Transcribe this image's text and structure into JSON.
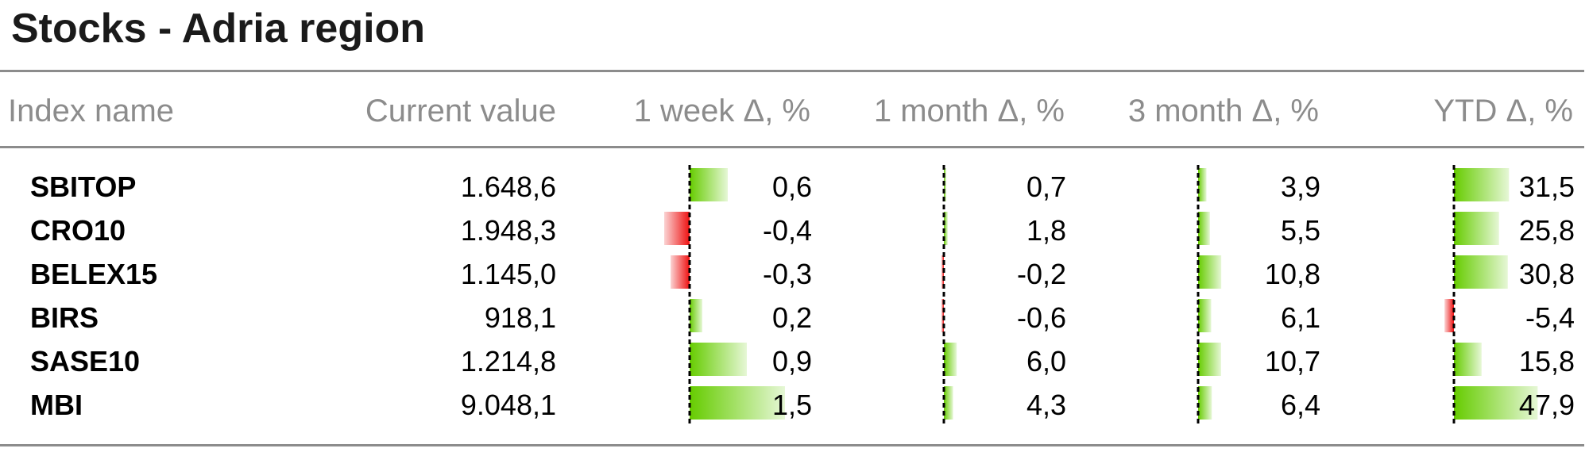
{
  "title": "Stocks - Adria region",
  "columns": [
    "Index name",
    "Current value",
    "1 week Δ, %",
    "1 month Δ, %",
    "3 month Δ, %",
    "YTD Δ, %"
  ],
  "colors": {
    "positive": "#66cc00",
    "negative": "#ee1111",
    "rule": "#8c8c8c",
    "header_text": "#8c8c8c"
  },
  "chart_data": {
    "type": "table",
    "title": "Stocks - Adria region",
    "rows": [
      {
        "name": "SBITOP",
        "current": "1.648,6",
        "w1": 0.6,
        "m1": 0.7,
        "m3": 3.9,
        "ytd": 31.5
      },
      {
        "name": "CRO10",
        "current": "1.948,3",
        "w1": -0.4,
        "m1": 1.8,
        "m3": 5.5,
        "ytd": 25.8
      },
      {
        "name": "BELEX15",
        "current": "1.145,0",
        "w1": -0.3,
        "m1": -0.2,
        "m3": 10.8,
        "ytd": 30.8
      },
      {
        "name": "BIRS",
        "current": "918,1",
        "w1": 0.2,
        "m1": -0.6,
        "m3": 6.1,
        "ytd": -5.4
      },
      {
        "name": "SASE10",
        "current": "1.214,8",
        "w1": 0.9,
        "m1": 6.0,
        "m3": 10.7,
        "ytd": 15.8
      },
      {
        "name": "MBI",
        "current": "9.048,1",
        "w1": 1.5,
        "m1": 4.3,
        "m3": 6.4,
        "ytd": 47.9
      }
    ]
  }
}
